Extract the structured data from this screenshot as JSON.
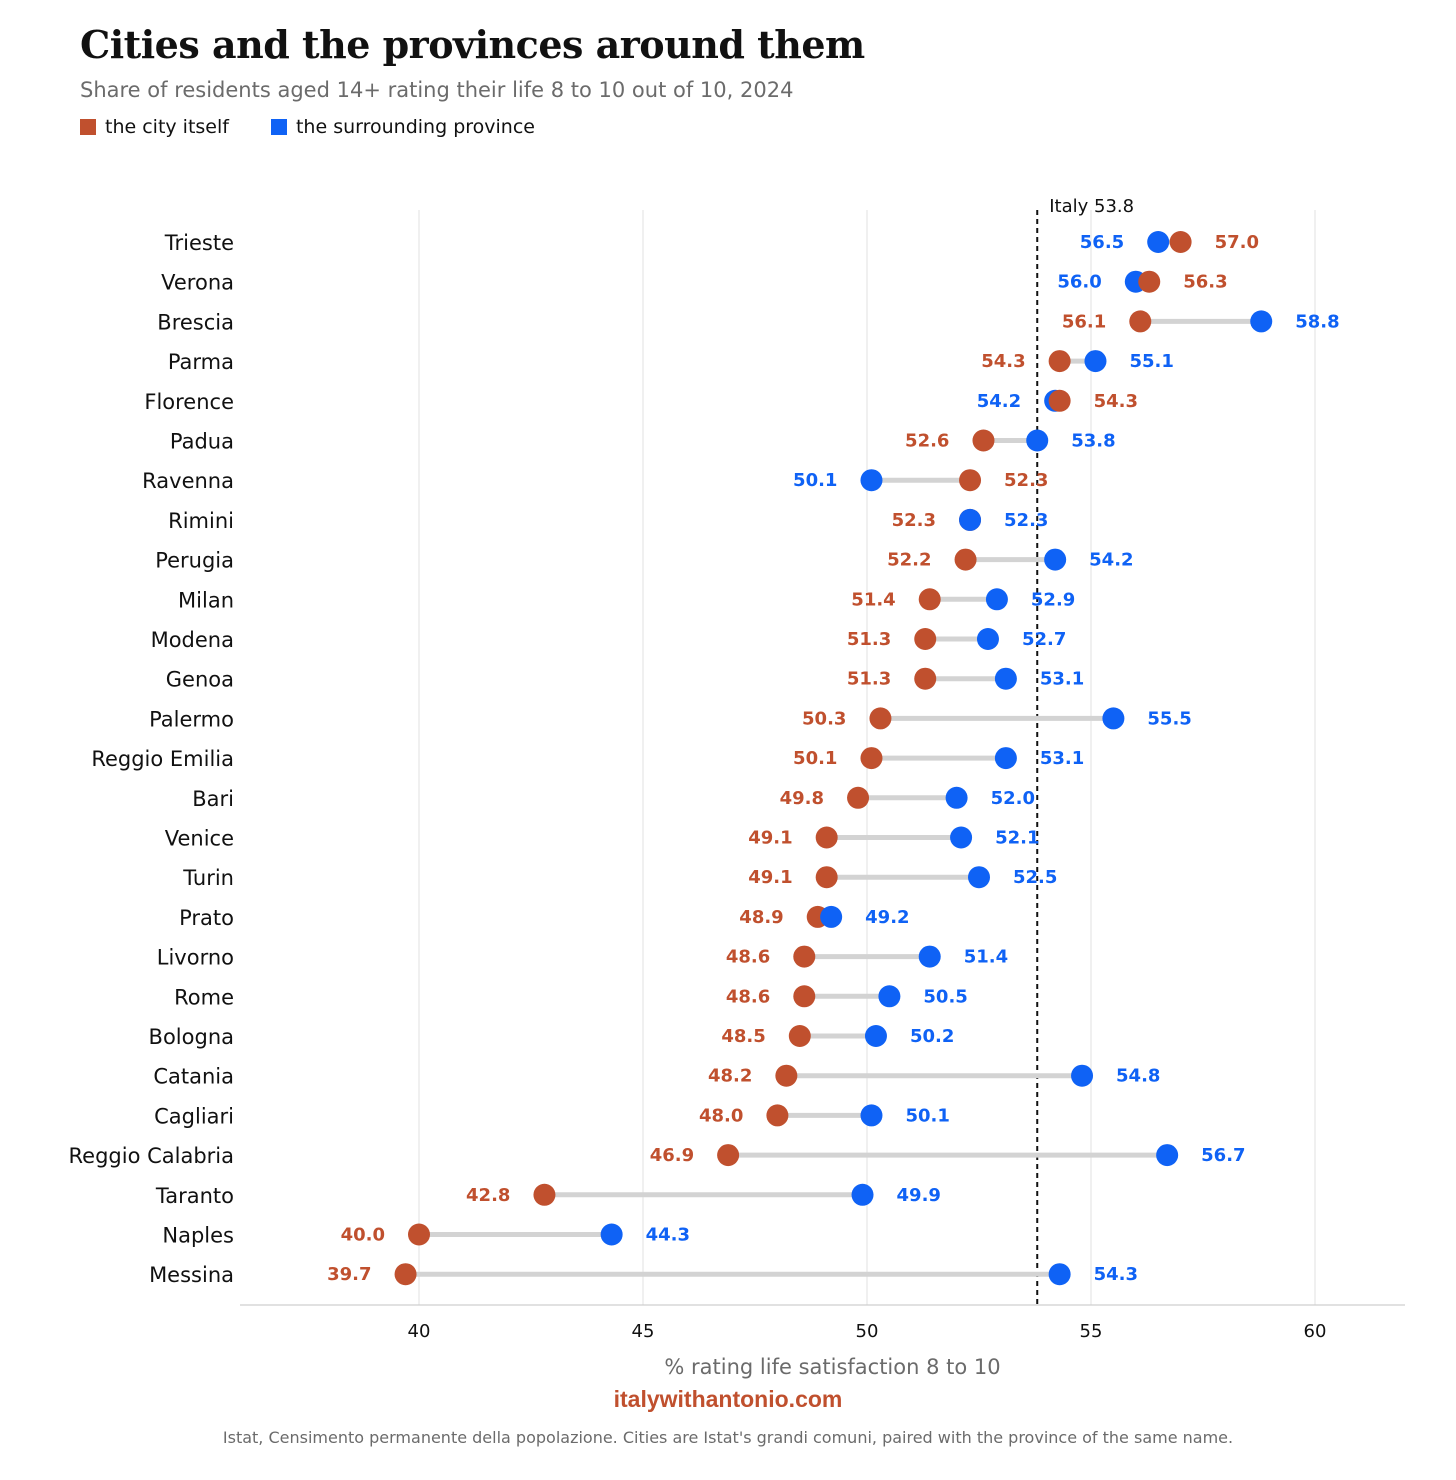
{
  "title": "Cities and the provinces around them",
  "subtitle": "Share of residents aged 14+ rating their life 8 to 10 out of 10, 2024",
  "legend": [
    {
      "label": "the city itself",
      "color": "#c0502e"
    },
    {
      "label": "the surrounding province",
      "color": "#0f62f5"
    }
  ],
  "brand": "italywithantonio.com",
  "source": "Istat, Censimento permanente della popolazione. Cities are Istat's grandi comuni, paired with the province of the same name.",
  "chart_data": {
    "type": "dumbbell",
    "xlabel": "% rating life satisfaction 8 to 10",
    "xlim": [
      36,
      62
    ],
    "xticks": [
      40,
      45,
      50,
      55,
      60
    ],
    "reference_line": {
      "value": 53.8,
      "label": "Italy 53.8"
    },
    "colors": {
      "city": "#c0502e",
      "province": "#0f62f5",
      "connector": "#d3d3d3",
      "grid": "#e6e6e6"
    },
    "categories": [
      "Trieste",
      "Verona",
      "Brescia",
      "Parma",
      "Florence",
      "Padua",
      "Ravenna",
      "Rimini",
      "Perugia",
      "Milan",
      "Modena",
      "Genoa",
      "Palermo",
      "Reggio Emilia",
      "Bari",
      "Venice",
      "Turin",
      "Prato",
      "Livorno",
      "Rome",
      "Bologna",
      "Catania",
      "Cagliari",
      "Reggio Calabria",
      "Taranto",
      "Naples",
      "Messina"
    ],
    "series": [
      {
        "name": "the city itself",
        "key": "city",
        "values": [
          57.0,
          56.3,
          56.1,
          54.3,
          54.3,
          52.6,
          52.3,
          52.3,
          52.2,
          51.4,
          51.3,
          51.3,
          50.3,
          50.1,
          49.8,
          49.1,
          49.1,
          48.9,
          48.6,
          48.6,
          48.5,
          48.2,
          48.0,
          46.9,
          42.8,
          40.0,
          39.7
        ]
      },
      {
        "name": "the surrounding province",
        "key": "province",
        "values": [
          56.5,
          56.0,
          58.8,
          55.1,
          54.2,
          53.8,
          50.1,
          52.3,
          54.2,
          52.9,
          52.7,
          53.1,
          55.5,
          53.1,
          52.0,
          52.1,
          52.5,
          49.2,
          51.4,
          50.5,
          50.2,
          54.8,
          50.1,
          56.7,
          49.9,
          44.3,
          54.3
        ]
      }
    ]
  }
}
